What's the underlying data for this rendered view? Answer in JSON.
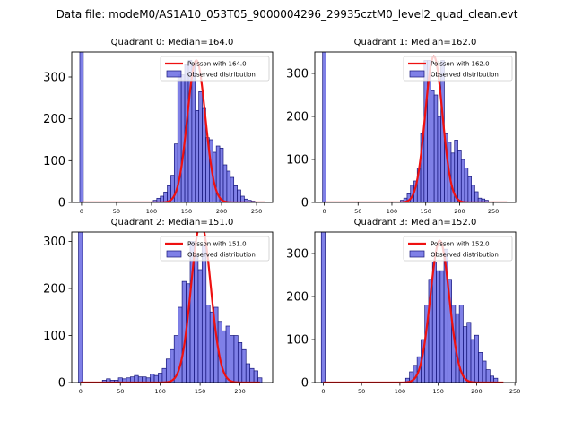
{
  "figure_title": "Data file: modeM0/AS1A10_053T05_9000004296_29935cztM0_level2_quad_clean.evt",
  "chart_data": [
    {
      "type": "bar",
      "title": "Quadrant 0: Median=164.0",
      "xlim": [
        -14,
        273
      ],
      "ylim": [
        0,
        360
      ],
      "xticks": [
        0,
        50,
        100,
        150,
        200,
        250
      ],
      "yticks": [
        0,
        100,
        200,
        300
      ],
      "bin_width": 5,
      "bar_color": "#4d4fde",
      "bins": [
        [
          0,
          360
        ],
        [
          105,
          5
        ],
        [
          110,
          10
        ],
        [
          115,
          15
        ],
        [
          120,
          25
        ],
        [
          125,
          40
        ],
        [
          130,
          65
        ],
        [
          135,
          140
        ],
        [
          140,
          305
        ],
        [
          145,
          305
        ],
        [
          150,
          330
        ],
        [
          155,
          340
        ],
        [
          160,
          330
        ],
        [
          165,
          220
        ],
        [
          170,
          265
        ],
        [
          175,
          225
        ],
        [
          180,
          155
        ],
        [
          185,
          150
        ],
        [
          190,
          120
        ],
        [
          195,
          135
        ],
        [
          200,
          130
        ],
        [
          205,
          90
        ],
        [
          210,
          75
        ],
        [
          215,
          60
        ],
        [
          220,
          40
        ],
        [
          225,
          30
        ],
        [
          230,
          15
        ],
        [
          235,
          8
        ],
        [
          240,
          5
        ],
        [
          245,
          3
        ]
      ],
      "legend": {
        "position": "top-right",
        "poisson_label": "Poisson with 164.0",
        "observed_label": "Observed distribution"
      },
      "poisson": {
        "mean": 164.0,
        "peak": 340,
        "x_range": [
          0,
          262
        ]
      }
    },
    {
      "type": "bar",
      "title": "Quadrant 1: Median=162.0",
      "xlim": [
        -14,
        283
      ],
      "ylim": [
        0,
        350
      ],
      "xticks": [
        0,
        50,
        100,
        150,
        200,
        250
      ],
      "yticks": [
        0,
        100,
        200,
        300
      ],
      "bin_width": 5,
      "bar_color": "#4d4fde",
      "bins": [
        [
          0,
          350
        ],
        [
          115,
          5
        ],
        [
          120,
          10
        ],
        [
          125,
          20
        ],
        [
          130,
          40
        ],
        [
          135,
          50
        ],
        [
          140,
          80
        ],
        [
          145,
          160
        ],
        [
          150,
          330
        ],
        [
          155,
          330
        ],
        [
          160,
          260
        ],
        [
          165,
          250
        ],
        [
          170,
          200
        ],
        [
          175,
          330
        ],
        [
          180,
          160
        ],
        [
          185,
          140
        ],
        [
          190,
          115
        ],
        [
          195,
          145
        ],
        [
          200,
          120
        ],
        [
          205,
          100
        ],
        [
          210,
          80
        ],
        [
          215,
          60
        ],
        [
          220,
          40
        ],
        [
          225,
          25
        ],
        [
          230,
          10
        ],
        [
          235,
          8
        ],
        [
          240,
          5
        ]
      ],
      "legend": {
        "position": "top-right",
        "poisson_label": "Poisson with 162.0",
        "observed_label": "Observed distribution"
      },
      "poisson": {
        "mean": 162.0,
        "peak": 340,
        "x_range": [
          0,
          270
        ]
      }
    },
    {
      "type": "bar",
      "title": "Quadrant 2: Median=151.0",
      "xlim": [
        -11,
        241
      ],
      "ylim": [
        0,
        320
      ],
      "xticks": [
        0,
        50,
        100,
        150,
        200
      ],
      "yticks": [
        0,
        100,
        200,
        300
      ],
      "bin_width": 5,
      "bar_color": "#4d4fde",
      "bins": [
        [
          0,
          320
        ],
        [
          30,
          5
        ],
        [
          35,
          8
        ],
        [
          40,
          5
        ],
        [
          45,
          5
        ],
        [
          50,
          10
        ],
        [
          55,
          8
        ],
        [
          60,
          10
        ],
        [
          65,
          12
        ],
        [
          70,
          15
        ],
        [
          75,
          12
        ],
        [
          80,
          12
        ],
        [
          85,
          10
        ],
        [
          90,
          18
        ],
        [
          95,
          15
        ],
        [
          100,
          20
        ],
        [
          105,
          30
        ],
        [
          110,
          50
        ],
        [
          115,
          70
        ],
        [
          120,
          100
        ],
        [
          125,
          160
        ],
        [
          130,
          215
        ],
        [
          135,
          210
        ],
        [
          140,
          300
        ],
        [
          145,
          270
        ],
        [
          150,
          240
        ],
        [
          155,
          290
        ],
        [
          160,
          165
        ],
        [
          165,
          150
        ],
        [
          170,
          160
        ],
        [
          175,
          130
        ],
        [
          180,
          110
        ],
        [
          185,
          120
        ],
        [
          190,
          100
        ],
        [
          195,
          100
        ],
        [
          200,
          85
        ],
        [
          205,
          70
        ],
        [
          210,
          40
        ],
        [
          215,
          30
        ],
        [
          220,
          25
        ],
        [
          225,
          10
        ]
      ],
      "legend": {
        "position": "top-right",
        "poisson_label": "Poisson with 151.0",
        "observed_label": "Observed distribution"
      },
      "poisson": {
        "mean": 151.0,
        "peak": 340,
        "x_range": [
          0,
          225
        ]
      }
    },
    {
      "type": "bar",
      "title": "Quadrant 3: Median=152.0",
      "xlim": [
        -11,
        251
      ],
      "ylim": [
        0,
        350
      ],
      "xticks": [
        0,
        50,
        100,
        150,
        200,
        250
      ],
      "yticks": [
        0,
        100,
        200,
        300
      ],
      "bin_width": 5,
      "bar_color": "#4d4fde",
      "bins": [
        [
          0,
          350
        ],
        [
          110,
          10
        ],
        [
          115,
          25
        ],
        [
          120,
          40
        ],
        [
          125,
          60
        ],
        [
          130,
          100
        ],
        [
          135,
          180
        ],
        [
          140,
          240
        ],
        [
          145,
          280
        ],
        [
          150,
          260
        ],
        [
          155,
          260
        ],
        [
          160,
          310
        ],
        [
          165,
          240
        ],
        [
          170,
          180
        ],
        [
          175,
          160
        ],
        [
          180,
          180
        ],
        [
          185,
          130
        ],
        [
          190,
          140
        ],
        [
          195,
          100
        ],
        [
          200,
          110
        ],
        [
          205,
          70
        ],
        [
          210,
          50
        ],
        [
          215,
          30
        ],
        [
          220,
          15
        ],
        [
          225,
          10
        ]
      ],
      "legend": {
        "position": "top-right",
        "poisson_label": "Poisson with 152.0",
        "observed_label": "Observed distribution"
      },
      "poisson": {
        "mean": 152.0,
        "peak": 330,
        "x_range": [
          0,
          235
        ]
      }
    }
  ]
}
